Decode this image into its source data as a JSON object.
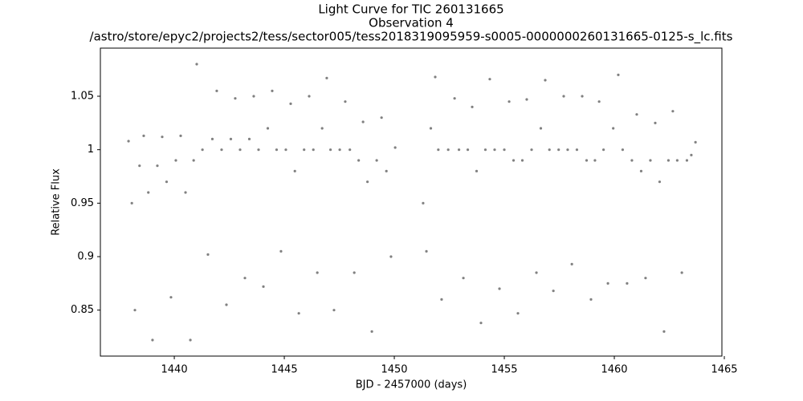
{
  "chart_data": {
    "type": "scatter",
    "title": "Light Curve for TIC 260131665",
    "subtitle": "Observation 4",
    "file": "/astro/store/epyc2/projects2/tess/sector005/tess2018319095959-s0005-0000000260131665-0125-s_lc.fits",
    "x_label": "BJD - 2457000 (days)",
    "y_label": "Relative Flux",
    "xlim": [
      1436.64,
      1464.89
    ],
    "ylim": [
      0.807,
      1.095
    ],
    "xticks": [
      1440,
      1445,
      1450,
      1455,
      1460,
      1465
    ],
    "yticks": [
      0.85,
      0.9,
      0.95,
      1.0,
      1.05
    ],
    "grid": false,
    "series": [
      {
        "color": "#808080",
        "x": [
          1437.92,
          1438.07,
          1438.21,
          1438.42,
          1438.61,
          1438.82,
          1439.01,
          1439.23,
          1439.45,
          1439.65,
          1439.85,
          1440.07,
          1440.29,
          1440.51,
          1440.73,
          1440.88,
          1441.02,
          1441.28,
          1441.53,
          1441.73,
          1441.93,
          1442.15,
          1442.37,
          1442.57,
          1442.77,
          1442.99,
          1443.21,
          1443.41,
          1443.61,
          1443.83,
          1444.05,
          1444.25,
          1444.45,
          1444.65,
          1444.85,
          1445.07,
          1445.29,
          1445.48,
          1445.66,
          1445.9,
          1446.13,
          1446.32,
          1446.5,
          1446.72,
          1446.93,
          1447.1,
          1447.26,
          1447.52,
          1447.77,
          1447.98,
          1448.18,
          1448.38,
          1448.58,
          1448.78,
          1448.98,
          1449.2,
          1449.42,
          1449.64,
          1449.85,
          1450.04,
          1451.31,
          1451.46,
          1451.66,
          1451.86,
          1452.0,
          1452.15,
          1452.45,
          1452.74,
          1452.94,
          1453.14,
          1453.34,
          1453.54,
          1453.74,
          1453.94,
          1454.14,
          1454.34,
          1454.56,
          1454.78,
          1455.0,
          1455.22,
          1455.42,
          1455.62,
          1455.82,
          1456.02,
          1456.24,
          1456.46,
          1456.66,
          1456.86,
          1457.05,
          1457.23,
          1457.47,
          1457.7,
          1457.88,
          1458.07,
          1458.3,
          1458.54,
          1458.74,
          1458.94,
          1459.12,
          1459.31,
          1459.51,
          1459.71,
          1459.95,
          1460.18,
          1460.38,
          1460.58,
          1460.8,
          1461.02,
          1461.22,
          1461.42,
          1461.64,
          1461.86,
          1462.06,
          1462.26,
          1462.46,
          1462.66,
          1462.86,
          1463.07,
          1463.3,
          1463.5,
          1463.69
        ],
        "values": [
          1.008,
          0.95,
          0.85,
          0.985,
          1.013,
          0.96,
          0.822,
          0.985,
          1.012,
          0.97,
          0.862,
          0.99,
          1.013,
          0.96,
          0.822,
          0.99,
          1.08,
          1.0,
          0.902,
          1.01,
          1.055,
          1.0,
          0.855,
          1.01,
          1.048,
          1.0,
          0.88,
          1.01,
          1.05,
          1.0,
          0.872,
          1.02,
          1.055,
          1.0,
          0.905,
          1.0,
          1.043,
          0.98,
          0.847,
          1.0,
          1.05,
          1.0,
          0.885,
          1.02,
          1.067,
          1.0,
          0.85,
          1.0,
          1.045,
          1.0,
          0.885,
          0.99,
          1.026,
          0.97,
          0.83,
          0.99,
          1.03,
          0.98,
          0.9,
          1.002,
          0.95,
          0.905,
          1.02,
          1.068,
          1.0,
          0.86,
          1.0,
          1.048,
          1.0,
          0.88,
          1.0,
          1.04,
          0.98,
          0.838,
          1.0,
          1.066,
          1.0,
          0.87,
          1.0,
          1.045,
          0.99,
          0.847,
          0.99,
          1.047,
          1.0,
          0.885,
          1.02,
          1.065,
          1.0,
          0.868,
          1.0,
          1.05,
          1.0,
          0.893,
          1.0,
          1.05,
          0.99,
          0.86,
          0.99,
          1.045,
          1.0,
          0.875,
          1.02,
          1.07,
          1.0,
          0.875,
          0.99,
          1.033,
          0.98,
          0.88,
          0.99,
          1.025,
          0.97,
          0.83,
          0.99,
          1.036,
          0.99,
          0.885,
          0.99,
          0.995,
          1.007
        ]
      }
    ]
  }
}
